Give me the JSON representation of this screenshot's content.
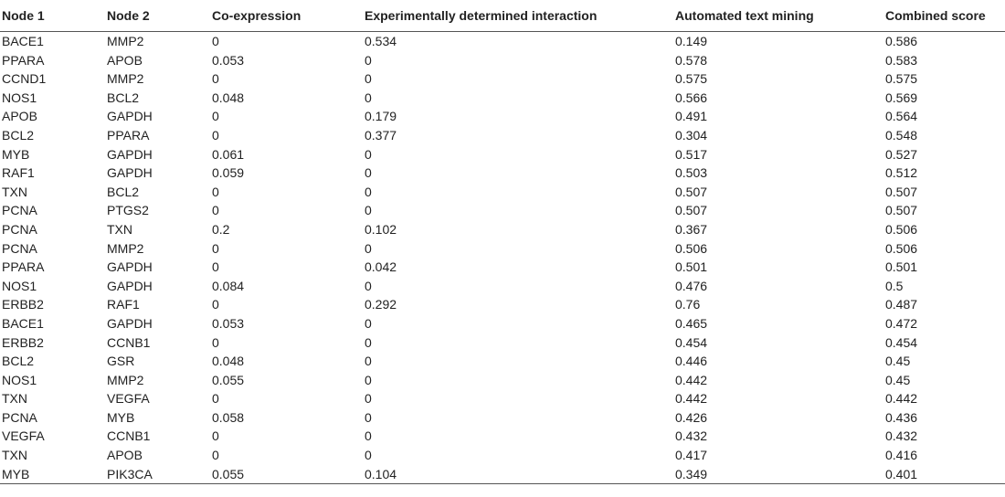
{
  "table": {
    "headers": [
      "Node 1",
      "Node 2",
      "Co-expression",
      "Experimentally determined interaction",
      "Automated text mining",
      "Combined score"
    ],
    "rows": [
      [
        "BACE1",
        "MMP2",
        "0",
        "0.534",
        "0.149",
        "0.586"
      ],
      [
        "PPARA",
        "APOB",
        "0.053",
        "0",
        "0.578",
        "0.583"
      ],
      [
        "CCND1",
        "MMP2",
        "0",
        "0",
        "0.575",
        "0.575"
      ],
      [
        "NOS1",
        "BCL2",
        "0.048",
        "0",
        "0.566",
        "0.569"
      ],
      [
        "APOB",
        "GAPDH",
        "0",
        "0.179",
        "0.491",
        "0.564"
      ],
      [
        "BCL2",
        "PPARA",
        "0",
        "0.377",
        "0.304",
        "0.548"
      ],
      [
        "MYB",
        "GAPDH",
        "0.061",
        "0",
        "0.517",
        "0.527"
      ],
      [
        "RAF1",
        "GAPDH",
        "0.059",
        "0",
        "0.503",
        "0.512"
      ],
      [
        "TXN",
        "BCL2",
        "0",
        "0",
        "0.507",
        "0.507"
      ],
      [
        "PCNA",
        "PTGS2",
        "0",
        "0",
        "0.507",
        "0.507"
      ],
      [
        "PCNA",
        "TXN",
        "0.2",
        "0.102",
        "0.367",
        "0.506"
      ],
      [
        "PCNA",
        "MMP2",
        "0",
        "0",
        "0.506",
        "0.506"
      ],
      [
        "PPARA",
        "GAPDH",
        "0",
        "0.042",
        "0.501",
        "0.501"
      ],
      [
        "NOS1",
        "GAPDH",
        "0.084",
        "0",
        "0.476",
        "0.5"
      ],
      [
        "ERBB2",
        "RAF1",
        "0",
        "0.292",
        "0.76",
        "0.487"
      ],
      [
        "BACE1",
        "GAPDH",
        "0.053",
        "0",
        "0.465",
        "0.472"
      ],
      [
        "ERBB2",
        "CCNB1",
        "0",
        "0",
        "0.454",
        "0.454"
      ],
      [
        "BCL2",
        "GSR",
        "0.048",
        "0",
        "0.446",
        "0.45"
      ],
      [
        "NOS1",
        "MMP2",
        "0.055",
        "0",
        "0.442",
        "0.45"
      ],
      [
        "TXN",
        "VEGFA",
        "0",
        "0",
        "0.442",
        "0.442"
      ],
      [
        "PCNA",
        "MYB",
        "0.058",
        "0",
        "0.426",
        "0.436"
      ],
      [
        "VEGFA",
        "CCNB1",
        "0",
        "0",
        "0.432",
        "0.432"
      ],
      [
        "TXN",
        "APOB",
        "0",
        "0",
        "0.417",
        "0.416"
      ],
      [
        "MYB",
        "PIK3CA",
        "0.055",
        "0.104",
        "0.349",
        "0.401"
      ]
    ]
  }
}
